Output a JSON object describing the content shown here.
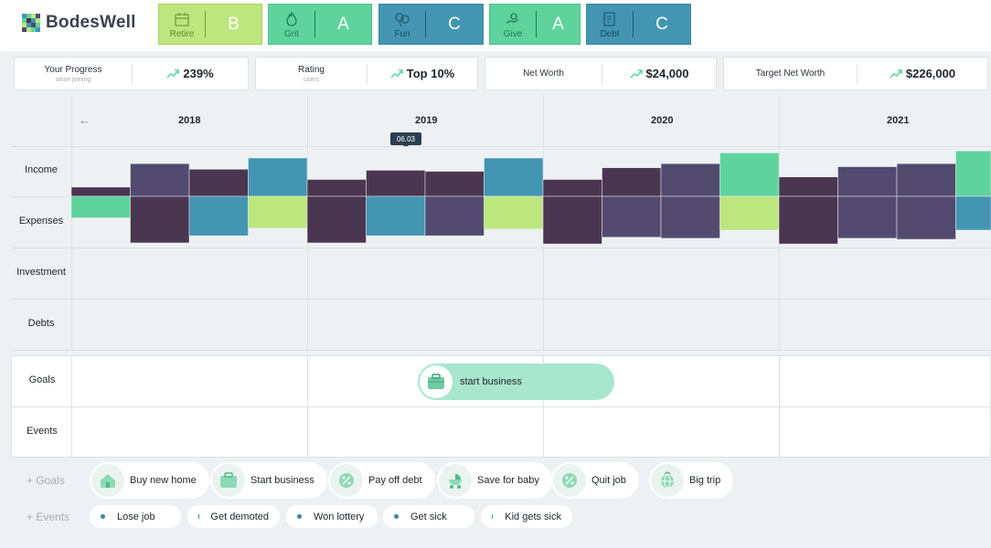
{
  "app": {
    "title": "BodesWell"
  },
  "scores": [
    {
      "category": "Retire",
      "grade": "B",
      "icon": "calendar-icon"
    },
    {
      "category": "Grit",
      "grade": "A",
      "icon": "flame-icon"
    },
    {
      "category": "Fun",
      "grade": "C",
      "icon": "balloons-icon"
    },
    {
      "category": "Give",
      "grade": "A",
      "icon": "giving-hand-icon"
    },
    {
      "category": "Debt",
      "grade": "C",
      "icon": "debt-document-icon"
    }
  ],
  "stats": [
    {
      "label": "Your Progress",
      "sublabel": "since joining",
      "value": "239%"
    },
    {
      "label": "Rating",
      "sublabel": "users",
      "value": "Top 10%"
    },
    {
      "label": "Net Worth",
      "sublabel": "",
      "value": "$24,000"
    },
    {
      "label": "Target Net Worth",
      "sublabel": "",
      "value": "$226,000"
    }
  ],
  "timeline": {
    "years": [
      "2018",
      "2019",
      "2020",
      "2021"
    ],
    "marker": "06.03",
    "rows": [
      "Income",
      "Expenses",
      "Investment",
      "Debts"
    ],
    "colors": {
      "dark": "#4b3651",
      "slate": "#524b6f",
      "teal": "#4395b1",
      "green": "#5fd39e",
      "lime": "#bde67f"
    },
    "periods": [
      {
        "income": 0.18,
        "income_color": "dark",
        "expense": 0.42,
        "expense_color": "green"
      },
      {
        "income": 0.64,
        "income_color": "slate",
        "expense": 0.91,
        "expense_color": "dark"
      },
      {
        "income": 0.53,
        "income_color": "dark",
        "expense": 0.77,
        "expense_color": "teal"
      },
      {
        "income": 0.75,
        "income_color": "teal",
        "expense": 0.62,
        "expense_color": "lime"
      },
      {
        "income": 0.33,
        "income_color": "dark",
        "expense": 0.91,
        "expense_color": "dark"
      },
      {
        "income": 0.51,
        "income_color": "dark",
        "expense": 0.77,
        "expense_color": "teal"
      },
      {
        "income": 0.49,
        "income_color": "dark",
        "expense": 0.77,
        "expense_color": "slate"
      },
      {
        "income": 0.75,
        "income_color": "teal",
        "expense": 0.64,
        "expense_color": "lime"
      },
      {
        "income": 0.33,
        "income_color": "dark",
        "expense": 0.93,
        "expense_color": "dark"
      },
      {
        "income": 0.56,
        "income_color": "dark",
        "expense": 0.8,
        "expense_color": "slate"
      },
      {
        "income": 0.64,
        "income_color": "slate",
        "expense": 0.82,
        "expense_color": "slate"
      },
      {
        "income": 0.85,
        "income_color": "green",
        "expense": 0.66,
        "expense_color": "lime"
      },
      {
        "income": 0.38,
        "income_color": "dark",
        "expense": 0.93,
        "expense_color": "dark"
      },
      {
        "income": 0.58,
        "income_color": "slate",
        "expense": 0.82,
        "expense_color": "slate"
      },
      {
        "income": 0.64,
        "income_color": "slate",
        "expense": 0.84,
        "expense_color": "slate"
      },
      {
        "income": 0.89,
        "income_color": "green",
        "expense": 0.66,
        "expense_color": "teal"
      }
    ]
  },
  "panel": {
    "rows": [
      "Goals",
      "Events"
    ],
    "active_goal": {
      "label": "start business",
      "icon": "briefcase-icon"
    }
  },
  "add_goals": {
    "label": "+ Goals",
    "items": [
      {
        "label": "Buy new home",
        "icon": "house-icon"
      },
      {
        "label": "Start business",
        "icon": "briefcase-icon"
      },
      {
        "label": "Pay off debt",
        "icon": "percent-icon"
      },
      {
        "label": "Save for baby",
        "icon": "stroller-icon"
      },
      {
        "label": "Quit job",
        "icon": "percent-icon"
      },
      {
        "label": "Big trip",
        "icon": "globe-icon"
      }
    ]
  },
  "add_events": {
    "label": "+ Events",
    "items": [
      {
        "label": "Lose job"
      },
      {
        "label": "Get demoted"
      },
      {
        "label": "Won lottery"
      },
      {
        "label": "Get sick"
      },
      {
        "label": "Kid gets sick"
      }
    ]
  }
}
